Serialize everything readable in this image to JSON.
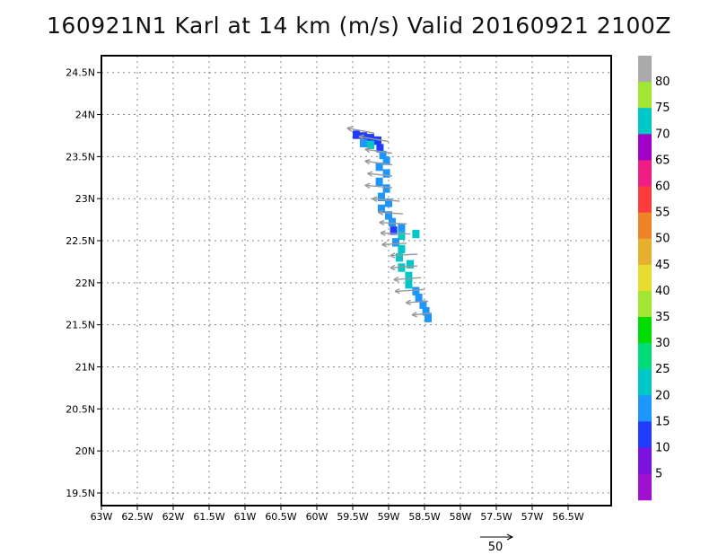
{
  "chart_data": {
    "type": "heatmap",
    "title": "160921N1 Karl at 14 km (m/s) Valid 20160921 2100Z",
    "x_ticks": [
      "63W",
      "62.5W",
      "62W",
      "61.5W",
      "61W",
      "60.5W",
      "60W",
      "59.5W",
      "59W",
      "58.5W",
      "58W",
      "57.5W",
      "57W",
      "56.5W"
    ],
    "y_ticks": [
      "24.5N",
      "24N",
      "23.5N",
      "23N",
      "22.5N",
      "22N",
      "21.5N",
      "21N",
      "20.5N",
      "20N",
      "19.5N"
    ],
    "x_range_lon": [
      -63.0,
      -55.9
    ],
    "y_range_lat": [
      19.35,
      24.7
    ],
    "grid": true,
    "colorbar": {
      "labels": [
        "5",
        "10",
        "15",
        "20",
        "25",
        "30",
        "35",
        "40",
        "45",
        "50",
        "55",
        "60",
        "65",
        "70",
        "75",
        "80"
      ],
      "colors": [
        "#a010d0",
        "#7a12e0",
        "#1f3cff",
        "#1e96ff",
        "#00c8c8",
        "#00dc78",
        "#00dc00",
        "#a0e632",
        "#e6dc32",
        "#e6af2d",
        "#f08228",
        "#fa3c3c",
        "#f01e82",
        "#a000c8",
        "#00c8c8",
        "#a0e632",
        "#aaaaaa"
      ]
    },
    "cells": [
      {
        "lon": -59.45,
        "lat": 23.76,
        "v": 10
      },
      {
        "lon": -59.35,
        "lat": 23.74,
        "v": 10
      },
      {
        "lon": -59.25,
        "lat": 23.72,
        "v": 10
      },
      {
        "lon": -59.15,
        "lat": 23.69,
        "v": 10
      },
      {
        "lon": -59.35,
        "lat": 23.66,
        "v": 15
      },
      {
        "lon": -59.25,
        "lat": 23.64,
        "v": 20
      },
      {
        "lon": -59.12,
        "lat": 23.6,
        "v": 10
      },
      {
        "lon": -59.08,
        "lat": 23.52,
        "v": 15
      },
      {
        "lon": -59.03,
        "lat": 23.45,
        "v": 15
      },
      {
        "lon": -59.13,
        "lat": 23.38,
        "v": 15
      },
      {
        "lon": -59.03,
        "lat": 23.3,
        "v": 15
      },
      {
        "lon": -59.13,
        "lat": 23.2,
        "v": 15
      },
      {
        "lon": -59.03,
        "lat": 23.12,
        "v": 15
      },
      {
        "lon": -59.1,
        "lat": 23.02,
        "v": 15
      },
      {
        "lon": -59.0,
        "lat": 22.95,
        "v": 15
      },
      {
        "lon": -59.1,
        "lat": 22.88,
        "v": 15
      },
      {
        "lon": -59.0,
        "lat": 22.8,
        "v": 15
      },
      {
        "lon": -58.95,
        "lat": 22.72,
        "v": 15
      },
      {
        "lon": -58.93,
        "lat": 22.62,
        "v": 10
      },
      {
        "lon": -58.82,
        "lat": 22.65,
        "v": 15
      },
      {
        "lon": -58.82,
        "lat": 22.56,
        "v": 20
      },
      {
        "lon": -58.62,
        "lat": 22.58,
        "v": 20
      },
      {
        "lon": -58.9,
        "lat": 22.48,
        "v": 15
      },
      {
        "lon": -58.82,
        "lat": 22.4,
        "v": 20
      },
      {
        "lon": -58.85,
        "lat": 22.3,
        "v": 20
      },
      {
        "lon": -58.7,
        "lat": 22.22,
        "v": 20
      },
      {
        "lon": -58.82,
        "lat": 22.18,
        "v": 20
      },
      {
        "lon": -58.72,
        "lat": 22.08,
        "v": 20
      },
      {
        "lon": -58.72,
        "lat": 21.98,
        "v": 20
      },
      {
        "lon": -58.62,
        "lat": 21.9,
        "v": 15
      },
      {
        "lon": -58.58,
        "lat": 21.82,
        "v": 15
      },
      {
        "lon": -58.52,
        "lat": 21.74,
        "v": 15
      },
      {
        "lon": -58.48,
        "lat": 21.66,
        "v": 15
      },
      {
        "lon": -58.45,
        "lat": 21.58,
        "v": 15
      }
    ],
    "vectors": [
      {
        "lon": -59.2,
        "lat": 23.78,
        "u": -0.55,
        "v": 0.1
      },
      {
        "lon": -59.0,
        "lat": 23.68,
        "u": -0.6,
        "v": 0.1
      },
      {
        "lon": -58.95,
        "lat": 23.54,
        "u": -0.55,
        "v": 0.08
      },
      {
        "lon": -58.95,
        "lat": 23.4,
        "u": -0.55,
        "v": 0.08
      },
      {
        "lon": -58.95,
        "lat": 23.27,
        "u": -0.5,
        "v": 0.05
      },
      {
        "lon": -58.95,
        "lat": 23.13,
        "u": -0.55,
        "v": 0.05
      },
      {
        "lon": -58.85,
        "lat": 22.97,
        "u": -0.55,
        "v": 0.05
      },
      {
        "lon": -58.8,
        "lat": 22.82,
        "u": -0.5,
        "v": 0.03
      },
      {
        "lon": -58.75,
        "lat": 22.7,
        "u": -0.55,
        "v": 0.03
      },
      {
        "lon": -58.7,
        "lat": 22.58,
        "u": -0.6,
        "v": 0.02
      },
      {
        "lon": -58.75,
        "lat": 22.47,
        "u": -0.5,
        "v": -0.03
      },
      {
        "lon": -58.6,
        "lat": 22.34,
        "u": -0.55,
        "v": -0.03
      },
      {
        "lon": -58.6,
        "lat": 22.2,
        "u": -0.55,
        "v": -0.04
      },
      {
        "lon": -58.55,
        "lat": 22.06,
        "u": -0.55,
        "v": -0.04
      },
      {
        "lon": -58.5,
        "lat": 21.92,
        "u": -0.6,
        "v": -0.04
      },
      {
        "lon": -58.45,
        "lat": 21.78,
        "u": -0.45,
        "v": -0.03
      },
      {
        "lon": -58.4,
        "lat": 21.64,
        "u": -0.4,
        "v": -0.04
      }
    ],
    "reference_vector_label": "50"
  }
}
